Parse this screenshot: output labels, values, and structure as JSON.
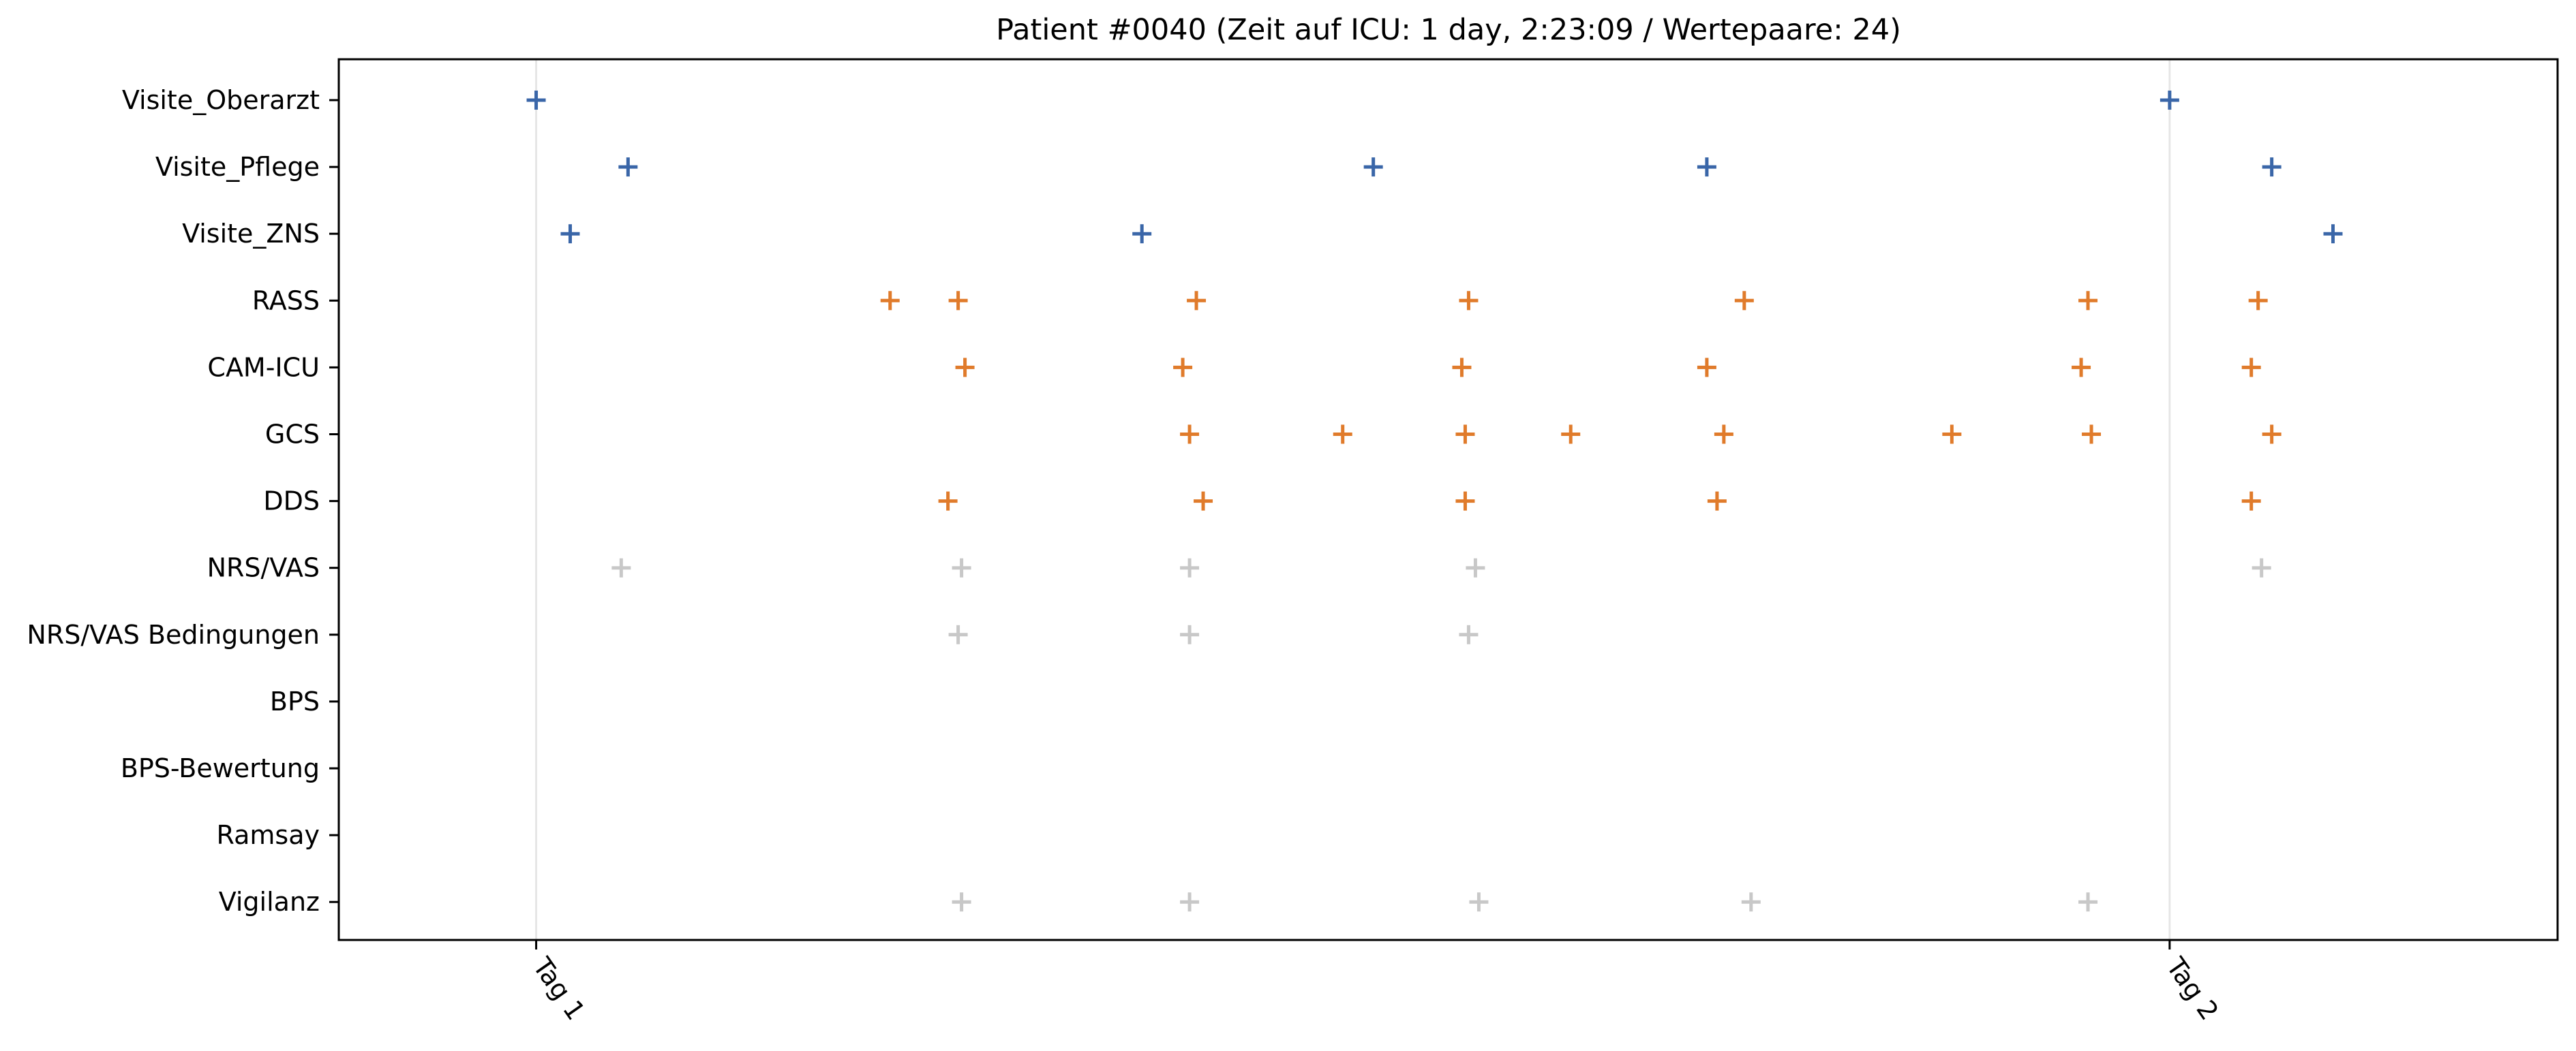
{
  "chart_data": {
    "type": "scatter",
    "title": "Patient #0040 (Zeit auf ICU: 1 day, 2:23:09 / Wertepaare: 24)",
    "xlabel": "",
    "ylabel": "",
    "x_unit": "hours since admission",
    "xlim": [
      -2.9,
      29.7
    ],
    "x_ticks": [
      {
        "label": "Tag 1",
        "value": 0
      },
      {
        "label": "Tag 2",
        "value": 24
      }
    ],
    "grid": "vertical lines at day ticks",
    "legend": "none",
    "marker": "+",
    "categories": [
      "Visite_Oberarzt",
      "Visite_Pflege",
      "Visite_ZNS",
      "RASS",
      "CAM-ICU",
      "GCS",
      "DDS",
      "NRS/VAS",
      "NRS/VAS Bedingungen",
      "BPS",
      "BPS-Bewertung",
      "Ramsay",
      "Vigilanz"
    ],
    "category_colors": {
      "Visite_Oberarzt": "#3a66a8",
      "Visite_Pflege": "#3a66a8",
      "Visite_ZNS": "#3a66a8",
      "RASS": "#e07b2b",
      "CAM-ICU": "#e07b2b",
      "GCS": "#e07b2b",
      "DDS": "#e07b2b",
      "NRS/VAS": "#c8c8c8",
      "NRS/VAS Bedingungen": "#c8c8c8",
      "BPS": "#c8c8c8",
      "BPS-Bewertung": "#c8c8c8",
      "Ramsay": "#c8c8c8",
      "Vigilanz": "#c8c8c8"
    },
    "series": [
      {
        "category": "Visite_Oberarzt",
        "x": [
          0.0,
          24.0
        ]
      },
      {
        "category": "Visite_Pflege",
        "x": [
          1.35,
          12.3,
          17.2,
          25.5
        ]
      },
      {
        "category": "Visite_ZNS",
        "x": [
          0.5,
          8.9,
          26.4
        ]
      },
      {
        "category": "RASS",
        "x": [
          5.2,
          6.2,
          9.7,
          13.7,
          17.75,
          22.8,
          25.3
        ]
      },
      {
        "category": "CAM-ICU",
        "x": [
          6.3,
          9.5,
          13.6,
          17.2,
          22.7,
          25.2
        ]
      },
      {
        "category": "GCS",
        "x": [
          9.6,
          11.85,
          13.65,
          15.2,
          17.45,
          20.8,
          22.85,
          25.5
        ]
      },
      {
        "category": "DDS",
        "x": [
          6.05,
          9.8,
          13.65,
          17.35,
          25.2
        ]
      },
      {
        "category": "NRS/VAS",
        "x": [
          1.25,
          6.25,
          9.6,
          13.8,
          25.35
        ]
      },
      {
        "category": "NRS/VAS Bedingungen",
        "x": [
          6.2,
          9.6,
          13.7
        ]
      },
      {
        "category": "BPS",
        "x": []
      },
      {
        "category": "BPS-Bewertung",
        "x": []
      },
      {
        "category": "Ramsay",
        "x": []
      },
      {
        "category": "Vigilanz",
        "x": [
          6.25,
          9.6,
          13.85,
          17.85,
          22.8
        ]
      }
    ]
  }
}
